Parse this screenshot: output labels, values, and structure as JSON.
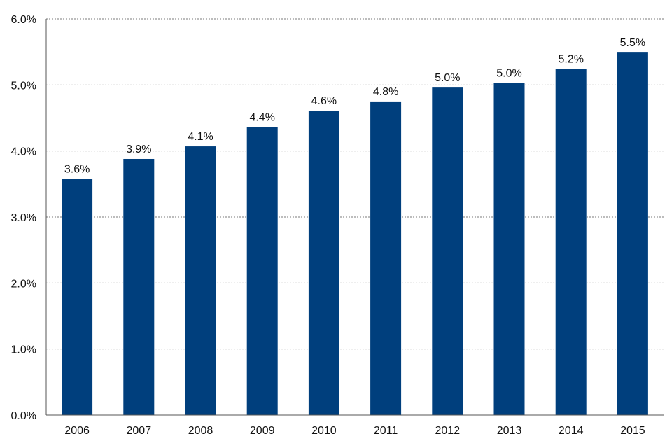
{
  "chart_data": {
    "type": "bar",
    "title": "",
    "xlabel": "",
    "ylabel": "",
    "categories": [
      "2006",
      "2007",
      "2008",
      "2009",
      "2010",
      "2011",
      "2012",
      "2013",
      "2014",
      "2015"
    ],
    "values": [
      3.6,
      3.9,
      4.1,
      4.4,
      4.6,
      4.8,
      5.0,
      5.0,
      5.2,
      5.5
    ],
    "bar_heights": [
      3.58,
      3.88,
      4.07,
      4.36,
      4.61,
      4.75,
      4.96,
      5.03,
      5.24,
      5.49
    ],
    "data_labels": [
      "3.6%",
      "3.9%",
      "4.1%",
      "4.4%",
      "4.6%",
      "4.8%",
      "5.0%",
      "5.0%",
      "5.2%",
      "5.5%"
    ],
    "ylim": [
      0,
      6
    ],
    "yticks": [
      0,
      1,
      2,
      3,
      4,
      5,
      6
    ],
    "ytick_labels": [
      "0.0%",
      "1.0%",
      "2.0%",
      "3.0%",
      "4.0%",
      "5.0%",
      "6.0%"
    ],
    "grid": true,
    "legend": "none",
    "bar_color": "#003f7d",
    "grid_color": "#7a7a7a"
  }
}
